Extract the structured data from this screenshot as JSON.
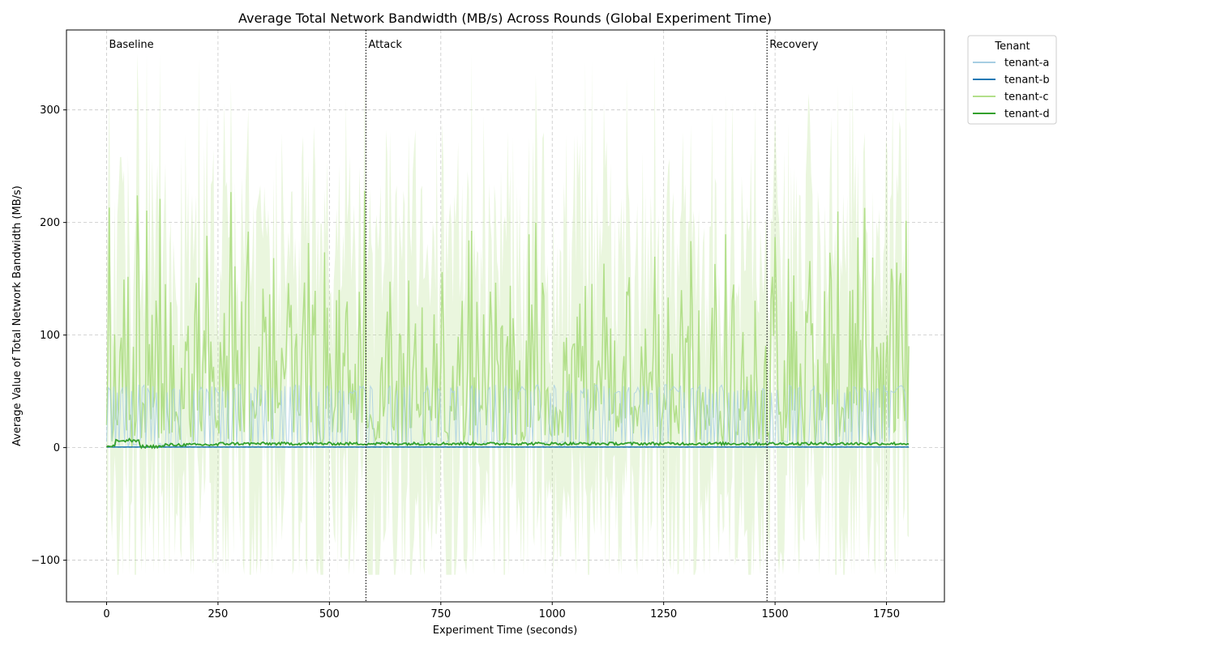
{
  "chart_data": {
    "type": "line",
    "title": "Average Total Network Bandwidth (MB/s) Across Rounds (Global Experiment Time)",
    "xlabel": "Experiment Time (seconds)",
    "ylabel": "Average Value of Total Network Bandwidth (MB/s)",
    "xlim": [
      -90,
      1880
    ],
    "ylim": [
      -137,
      371
    ],
    "x_ticks": [
      0,
      250,
      500,
      750,
      1000,
      1250,
      1500,
      1750
    ],
    "x_tick_labels": [
      "0",
      "250",
      "500",
      "750",
      "1000",
      "1250",
      "1500",
      "1750"
    ],
    "y_ticks": [
      -100,
      0,
      100,
      200,
      300
    ],
    "y_tick_labels": [
      "−100",
      "0",
      "100",
      "200",
      "300"
    ],
    "grid": true,
    "phase_markers": [
      {
        "x": 0,
        "label": "Baseline",
        "line": false
      },
      {
        "x": 582,
        "label": "Attack",
        "line": true
      },
      {
        "x": 1482,
        "label": "Recovery",
        "line": true
      }
    ],
    "legend": {
      "title": "Tenant",
      "placement": "outside-top-right"
    },
    "series": [
      {
        "name": "tenant-a",
        "color": "#a6cee3",
        "description": "step-like bursts mostly 0 to ~55 MB/s across the run",
        "typical_range": [
          0,
          56
        ],
        "samples_x": [
          0,
          30,
          100,
          200,
          380,
          550,
          700,
          880,
          1040,
          1180,
          1360,
          1500,
          1700,
          1800
        ],
        "samples_y": [
          20,
          25,
          50,
          52,
          50,
          50,
          52,
          50,
          55,
          50,
          55,
          48,
          55,
          48
        ]
      },
      {
        "name": "tenant-b",
        "color": "#1f78b4",
        "description": "near zero throughout",
        "typical_range": [
          0,
          2
        ],
        "samples_x": [
          0,
          500,
          1000,
          1500,
          1800
        ],
        "samples_y": [
          0.5,
          0.5,
          0.5,
          0.5,
          0.5
        ]
      },
      {
        "name": "tenant-c",
        "color": "#b2df8a",
        "description": "highly volatile spikes with a wide confidence band (about -110 to 350)",
        "typical_range": [
          0,
          228
        ],
        "peaks": [
          {
            "x": 70,
            "y": 224
          },
          {
            "x": 120,
            "y": 221
          },
          {
            "x": 280,
            "y": 227
          },
          {
            "x": 580,
            "y": 228
          },
          {
            "x": 1700,
            "y": 213
          }
        ],
        "band_range": [
          -113,
          350
        ]
      },
      {
        "name": "tenant-d",
        "color": "#33a02c",
        "description": "low steady level around 3-5 MB/s",
        "typical_range": [
          1,
          7
        ],
        "samples_x": [
          0,
          60,
          100,
          200,
          500,
          1000,
          1500,
          1800
        ],
        "samples_y": [
          2,
          6,
          1,
          3,
          3.5,
          4,
          4,
          3.5
        ]
      }
    ]
  }
}
